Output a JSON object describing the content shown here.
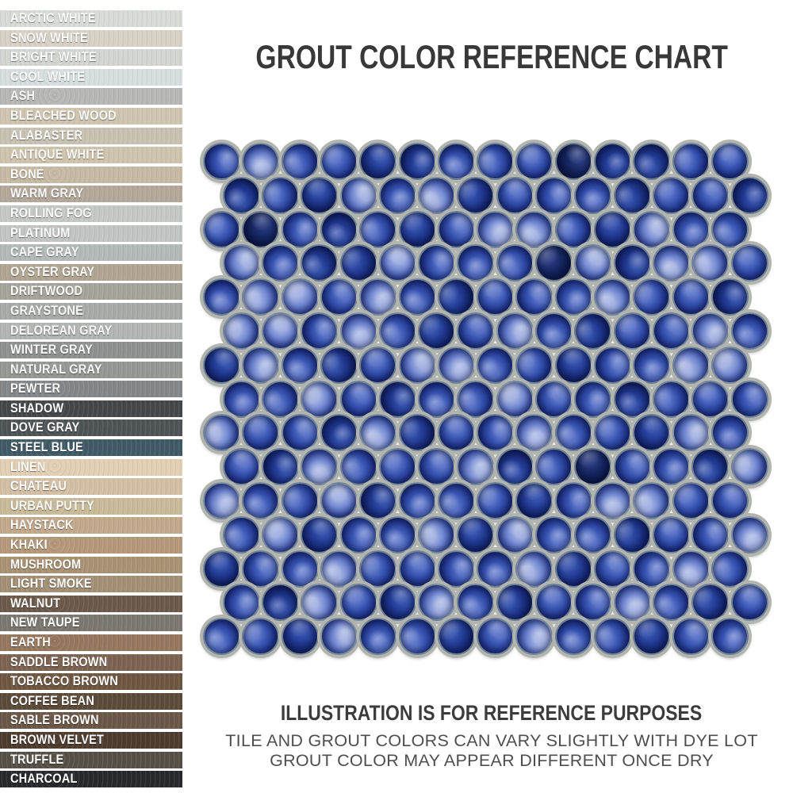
{
  "title": "GROUT COLOR REFERENCE CHART",
  "sidebar": {
    "swatches": [
      {
        "name": "ARCTIC WHITE",
        "color": "#d9dbd6"
      },
      {
        "name": "SNOW WHITE",
        "color": "#d7d1c6"
      },
      {
        "name": "BRIGHT WHITE",
        "color": "#d3d5d1"
      },
      {
        "name": "COOL WHITE",
        "color": "#d7dee0"
      },
      {
        "name": "ASH",
        "color": "#b7b8b6"
      },
      {
        "name": "BLEACHED WOOD",
        "color": "#cfc5b1"
      },
      {
        "name": "ALABASTER",
        "color": "#c8c2b2"
      },
      {
        "name": "ANTIQUE WHITE",
        "color": "#cfc4ad"
      },
      {
        "name": "BONE",
        "color": "#c7baa4"
      },
      {
        "name": "WARM GRAY",
        "color": "#b3a899"
      },
      {
        "name": "ROLLING FOG",
        "color": "#c4c9c6"
      },
      {
        "name": "PLATINUM",
        "color": "#c1c5c4"
      },
      {
        "name": "CAPE GRAY",
        "color": "#b4bab8"
      },
      {
        "name": "OYSTER GRAY",
        "color": "#b1a592"
      },
      {
        "name": "DRIFTWOOD",
        "color": "#a6a39a"
      },
      {
        "name": "GRAYSTONE",
        "color": "#a7aaa7"
      },
      {
        "name": "DELOREAN GRAY",
        "color": "#b1b5b4"
      },
      {
        "name": "WINTER GRAY",
        "color": "#8d9291"
      },
      {
        "name": "NATURAL GRAY",
        "color": "#959792"
      },
      {
        "name": "PEWTER",
        "color": "#848789"
      },
      {
        "name": "SHADOW",
        "color": "#44474a"
      },
      {
        "name": "DOVE GRAY",
        "color": "#4e5356"
      },
      {
        "name": "STEEL BLUE",
        "color": "#3f5a66"
      },
      {
        "name": "LINEN",
        "color": "#e2cfb4"
      },
      {
        "name": "CHATEAU",
        "color": "#d3bfa4"
      },
      {
        "name": "URBAN PUTTY",
        "color": "#c9ba99"
      },
      {
        "name": "HAYSTACK",
        "color": "#c3a98c"
      },
      {
        "name": "KHAKI",
        "color": "#b4987a"
      },
      {
        "name": "MUSHROOM",
        "color": "#a99274"
      },
      {
        "name": "LIGHT SMOKE",
        "color": "#a38f75"
      },
      {
        "name": "WALNUT",
        "color": "#6b5949"
      },
      {
        "name": "NEW TAUPE",
        "color": "#7b7770"
      },
      {
        "name": "EARTH",
        "color": "#96775e"
      },
      {
        "name": "SADDLE BROWN",
        "color": "#7c6250"
      },
      {
        "name": "TOBACCO BROWN",
        "color": "#6e5640"
      },
      {
        "name": "COFFEE BEAN",
        "color": "#5c4a39"
      },
      {
        "name": "SABLE BROWN",
        "color": "#6a5747"
      },
      {
        "name": "BROWN VELVET",
        "color": "#4d3b2d"
      },
      {
        "name": "TRUFFLE",
        "color": "#564f45"
      },
      {
        "name": "CHARCOAL",
        "color": "#26282b"
      }
    ]
  },
  "mosaic": {
    "description": "blue glazed penny-round tile photo",
    "grout_color": "#b2b5af",
    "shadow_color": "rgba(68,70,64,0.45)",
    "glaze_edge_color": "rgba(122,140,146,0.85)",
    "palette": {
      "L": {
        "base": "#a3b1e2",
        "mid": "#7389d2",
        "deep": "#32479e",
        "rim": "#22336f"
      },
      "M": {
        "base": "#5b74c8",
        "mid": "#3652b0",
        "deep": "#1b2d80",
        "rim": "#13205c"
      },
      "D": {
        "base": "#3450ab",
        "mid": "#20388f",
        "deep": "#101f62",
        "rim": "#0a1444"
      },
      "N": {
        "base": "#233579",
        "mid": "#15245c",
        "deep": "#0a1340",
        "rim": "#060d2e"
      }
    },
    "pattern": [
      "MLMMDDMMMNDDMM",
      "DMDLMLDMMMDMMD",
      "MNMDMDMLLMDLMM",
      "LMDDLMMMNLDLLM",
      "MLLMLMDMMMLMMD",
      "LLMLMDMLMDMMLM",
      "DLMDMLLMMDMMLL",
      "MMLMDMMLMMDMMM",
      "LMMDLDMMLMMDLM",
      "MDLMMMLDMNMMDL",
      "LMMLDMMMDMLLMM",
      "MLDMMLDLMMDMML",
      "DMMLMMMMLDMMLM",
      "MDLMDLMDMMLMDM",
      "MMDLMMDMLMMDMM"
    ]
  },
  "footer": {
    "heading": "ILLUSTRATION IS FOR REFERENCE PURPOSES",
    "line1": "TILE AND GROUT COLORS CAN VARY SLIGHTLY WITH DYE LOT",
    "line2": "GROUT COLOR MAY APPEAR DIFFERENT ONCE DRY"
  }
}
